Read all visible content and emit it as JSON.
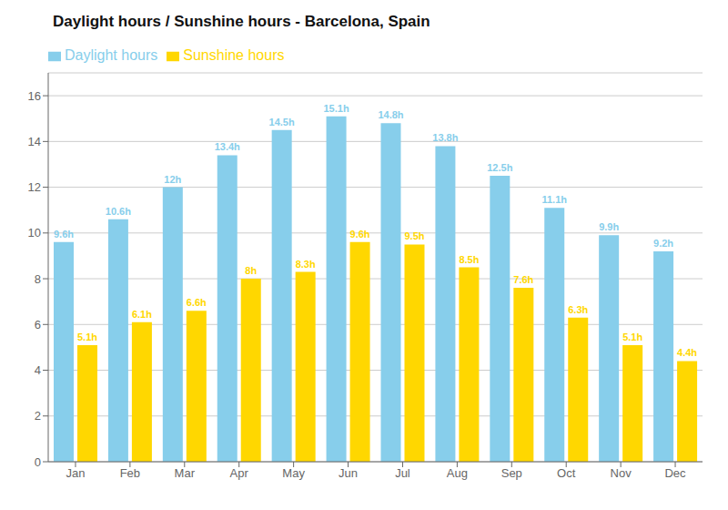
{
  "chart_data": {
    "type": "bar",
    "title": "Daylight hours / Sunshine hours - Barcelona, Spain",
    "categories": [
      "Jan",
      "Feb",
      "Mar",
      "Apr",
      "May",
      "Jun",
      "Jul",
      "Aug",
      "Sep",
      "Oct",
      "Nov",
      "Dec"
    ],
    "series": [
      {
        "name": "Daylight hours",
        "color": "#87CEEB",
        "values": [
          9.6,
          10.6,
          12.0,
          13.4,
          14.5,
          15.1,
          14.8,
          13.8,
          12.5,
          11.1,
          9.9,
          9.2
        ],
        "value_labels": [
          "9.6h",
          "10.6h",
          "12h",
          "13.4h",
          "14.5h",
          "15.1h",
          "14.8h",
          "13.8h",
          "12.5h",
          "11.1h",
          "9.9h",
          "9.2h"
        ]
      },
      {
        "name": "Sunshine hours",
        "color": "#FFD700",
        "values": [
          5.1,
          6.1,
          6.6,
          8.0,
          8.3,
          9.6,
          9.5,
          8.5,
          7.6,
          6.3,
          5.1,
          4.4
        ],
        "value_labels": [
          "5.1h",
          "6.1h",
          "6.6h",
          "8h",
          "8.3h",
          "9.6h",
          "9.5h",
          "8.5h",
          "7.6h",
          "6.3h",
          "5.1h",
          "4.4h"
        ]
      }
    ],
    "ylim": [
      0,
      17
    ],
    "yticks": [
      0,
      2,
      4,
      6,
      8,
      10,
      12,
      14,
      16
    ],
    "grid": true,
    "data_labels": true,
    "legend": "upper left"
  }
}
